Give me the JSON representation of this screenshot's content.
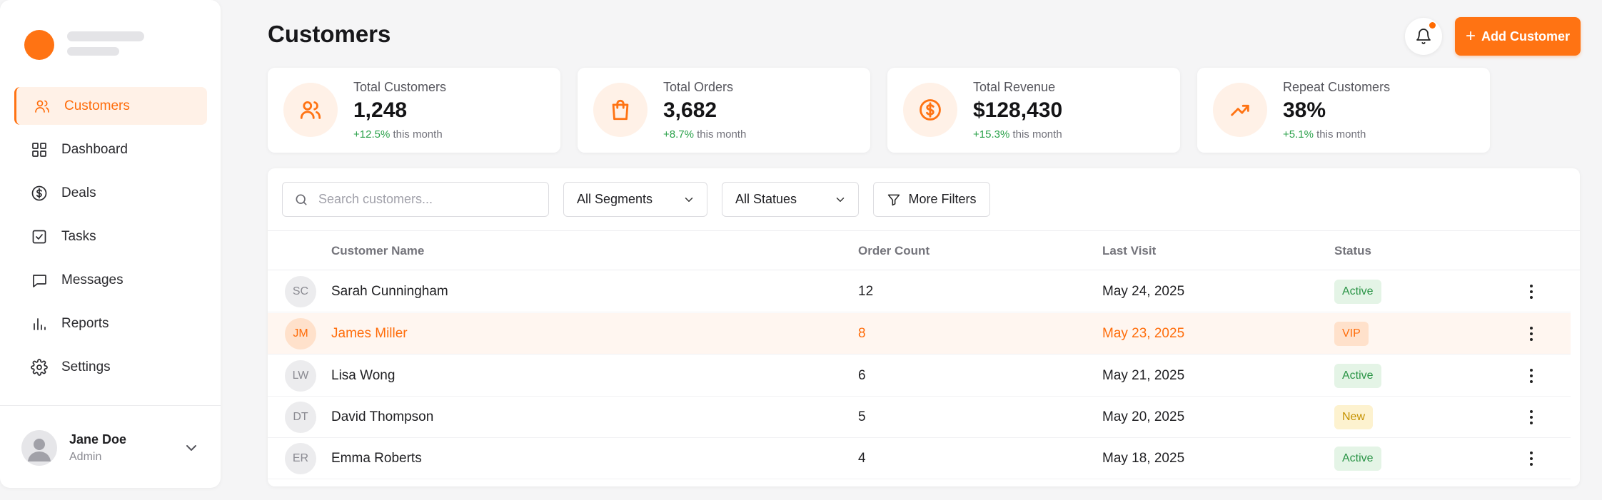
{
  "sidebar": {
    "items": [
      {
        "label": "Customers",
        "icon": "users-icon",
        "active": true
      },
      {
        "label": "Dashboard",
        "icon": "grid-icon"
      },
      {
        "label": "Deals",
        "icon": "dollar-icon"
      },
      {
        "label": "Tasks",
        "icon": "checkbox-icon"
      },
      {
        "label": "Messages",
        "icon": "message-icon"
      },
      {
        "label": "Reports",
        "icon": "bar-chart-icon"
      },
      {
        "label": "Settings",
        "icon": "gear-icon"
      }
    ],
    "user": {
      "name": "Jane Doe",
      "role": "Admin"
    }
  },
  "header": {
    "title": "Customers",
    "add_label": "Add Customer"
  },
  "stats": [
    {
      "label": "Total Customers",
      "value": "1,248",
      "change": "+12.5%",
      "change_suffix": " this month",
      "icon": "users-icon"
    },
    {
      "label": "Total Orders",
      "value": "3,682",
      "change": "+8.7%",
      "change_suffix": " this month",
      "icon": "shopping-bag-icon"
    },
    {
      "label": "Total Revenue",
      "value": "$128,430",
      "change": "+15.3%",
      "change_suffix": " this month",
      "icon": "dollar-circle-icon"
    },
    {
      "label": "Repeat Customers",
      "value": "38%",
      "change": "+5.1%",
      "change_suffix": " this month",
      "icon": "trending-up-icon"
    }
  ],
  "filters": {
    "search_placeholder": "Search customers...",
    "segment": "All Segments",
    "status": "All Statues",
    "more": "More Filters"
  },
  "table": {
    "columns": [
      "Customer Name",
      "Order Count",
      "Last Visit",
      "Status"
    ],
    "rows": [
      {
        "initials": "SC",
        "name": "Sarah Cunningham",
        "orders": "12",
        "last_visit": "May 24, 2025",
        "status": "Active"
      },
      {
        "initials": "JM",
        "name": "James Miller",
        "orders": "8",
        "last_visit": "May 23, 2025",
        "status": "VIP"
      },
      {
        "initials": "LW",
        "name": "Lisa Wong",
        "orders": "6",
        "last_visit": "May 21, 2025",
        "status": "Active"
      },
      {
        "initials": "DT",
        "name": "David Thompson",
        "orders": "5",
        "last_visit": "May 20, 2025",
        "status": "New"
      },
      {
        "initials": "ER",
        "name": "Emma Roberts",
        "orders": "4",
        "last_visit": "May 18, 2025",
        "status": "Active"
      }
    ]
  },
  "colors": {
    "accent": "#ff7313",
    "accent_light": "#fff1e7",
    "positive": "#2aa14a"
  }
}
